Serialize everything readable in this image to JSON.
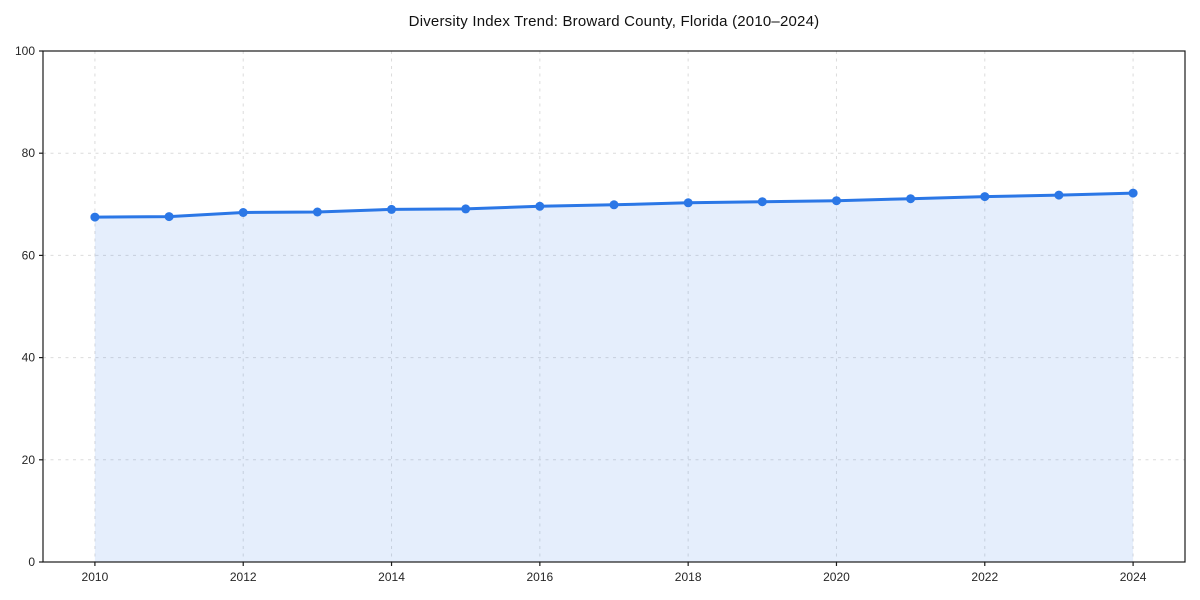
{
  "chart_data": {
    "type": "area",
    "title": "Diversity Index Trend: Broward County, Florida (2010–2024)",
    "x": [
      2010,
      2011,
      2012,
      2013,
      2014,
      2015,
      2016,
      2017,
      2018,
      2019,
      2020,
      2021,
      2022,
      2023,
      2024
    ],
    "series": [
      {
        "name": "Diversity Index",
        "values": [
          67.5,
          67.6,
          68.4,
          68.5,
          69.0,
          69.1,
          69.6,
          69.9,
          70.3,
          70.5,
          70.7,
          71.1,
          71.5,
          71.8,
          72.2
        ]
      }
    ],
    "x_ticks": [
      "2010",
      "2012",
      "2014",
      "2016",
      "2018",
      "2020",
      "2022",
      "2024"
    ],
    "x_tick_values": [
      2010,
      2012,
      2014,
      2016,
      2018,
      2020,
      2022,
      2024
    ],
    "y_ticks": [
      "0",
      "20",
      "40",
      "60",
      "80",
      "100"
    ],
    "y_tick_values": [
      0,
      20,
      40,
      60,
      80,
      100
    ],
    "xlim": [
      2009.3,
      2024.7
    ],
    "ylim": [
      0,
      100
    ],
    "grid": true,
    "legend": "none",
    "xlabel": "",
    "ylabel": "",
    "colors": {
      "line": "#2b77e6",
      "marker": "#2b77e6",
      "fill": "#2b77e6",
      "fill_opacity": "0.12",
      "grid": "#dcdcdc",
      "axis": "#1a1a1a",
      "tick_text": "#262626",
      "title_text": "#111111",
      "background": "#ffffff"
    }
  }
}
